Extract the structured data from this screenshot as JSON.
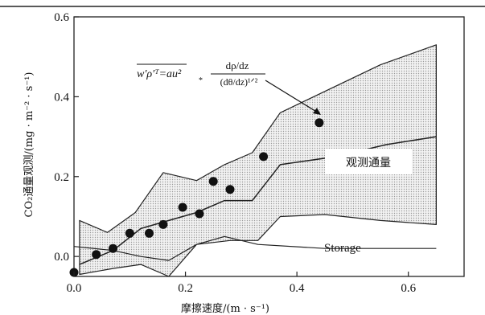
{
  "chart_data": {
    "type": "scatter",
    "xlabel": "摩擦速度/(m · s⁻¹)",
    "ylabel": "CO₂通量观测/(mg · m⁻² · s⁻¹)",
    "xlim": [
      0,
      0.7
    ],
    "ylim": [
      -0.05,
      0.6
    ],
    "xticks": [
      "0.0",
      "0.2",
      "0.4",
      "0.6"
    ],
    "yticks": [
      "0.0",
      "0.2",
      "0.4",
      "0.6"
    ],
    "grid": false,
    "points": [
      {
        "x": 0.0,
        "y": -0.04
      },
      {
        "x": 0.04,
        "y": 0.005
      },
      {
        "x": 0.07,
        "y": 0.02
      },
      {
        "x": 0.1,
        "y": 0.058
      },
      {
        "x": 0.135,
        "y": 0.058
      },
      {
        "x": 0.16,
        "y": 0.08
      },
      {
        "x": 0.195,
        "y": 0.123
      },
      {
        "x": 0.225,
        "y": 0.107
      },
      {
        "x": 0.25,
        "y": 0.188
      },
      {
        "x": 0.28,
        "y": 0.168
      },
      {
        "x": 0.34,
        "y": 0.25
      },
      {
        "x": 0.44,
        "y": 0.335
      }
    ],
    "band_upper": [
      [
        0.01,
        0.09
      ],
      [
        0.06,
        0.06
      ],
      [
        0.11,
        0.11
      ],
      [
        0.16,
        0.21
      ],
      [
        0.22,
        0.19
      ],
      [
        0.27,
        0.23
      ],
      [
        0.32,
        0.26
      ],
      [
        0.37,
        0.36
      ],
      [
        0.46,
        0.42
      ],
      [
        0.55,
        0.48
      ],
      [
        0.65,
        0.53
      ]
    ],
    "band_lower": [
      [
        0.65,
        0.08
      ],
      [
        0.55,
        0.09
      ],
      [
        0.45,
        0.105
      ],
      [
        0.37,
        0.1
      ],
      [
        0.33,
        0.04
      ],
      [
        0.28,
        0.04
      ],
      [
        0.22,
        0.03
      ],
      [
        0.17,
        -0.05
      ],
      [
        0.12,
        -0.02
      ],
      [
        0.07,
        -0.03
      ],
      [
        0.01,
        -0.045
      ]
    ],
    "mean_line": [
      [
        0.01,
        -0.02
      ],
      [
        0.07,
        0.015
      ],
      [
        0.12,
        0.07
      ],
      [
        0.17,
        0.09
      ],
      [
        0.22,
        0.11
      ],
      [
        0.27,
        0.14
      ],
      [
        0.32,
        0.14
      ],
      [
        0.37,
        0.23
      ],
      [
        0.47,
        0.25
      ],
      [
        0.56,
        0.28
      ],
      [
        0.65,
        0.3
      ]
    ],
    "storage_line": [
      [
        0.0,
        0.025
      ],
      [
        0.07,
        0.015
      ],
      [
        0.12,
        0.0
      ],
      [
        0.17,
        -0.01
      ],
      [
        0.22,
        0.03
      ],
      [
        0.27,
        0.05
      ],
      [
        0.33,
        0.03
      ],
      [
        0.45,
        0.02
      ],
      [
        0.65,
        0.02
      ]
    ],
    "annotations": {
      "band_label": "观测通量",
      "storage_label": "Storage",
      "formula_lhs": "w′ρ′ᵀ=au²",
      "formula_sub": "*",
      "formula_num": "dρ/dz",
      "formula_den": "(dθ/dz)¹ᐟ²"
    }
  }
}
